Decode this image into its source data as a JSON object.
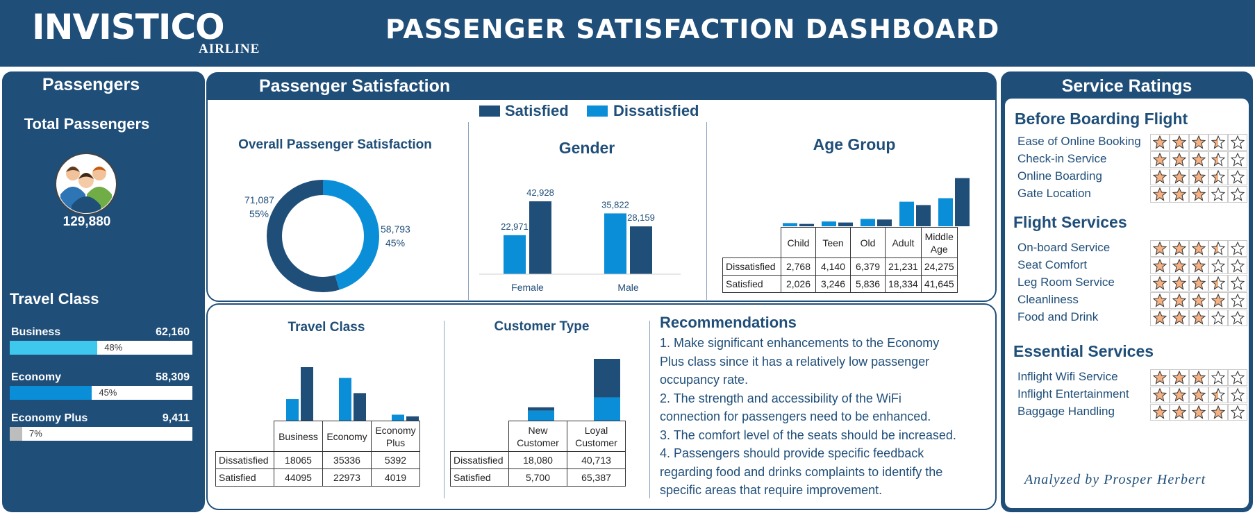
{
  "header": {
    "logo": "INVISTICO",
    "logo_sub": "AIRLINE",
    "title": "PASSENGER SATISFACTION DASHBOARD"
  },
  "colors": {
    "navy": "#1f4e79",
    "satisfied": "#1f4e79",
    "dissatisfied": "#0a8ed8",
    "cyan": "#3fc8ee",
    "gray": "#bdbdbd",
    "star": "#f4b183"
  },
  "passengers": {
    "title": "Passengers",
    "total_label": "Total Passengers",
    "total_value": "129,880",
    "avatar_icon": "people-group-icon",
    "travel_class_title": "Travel Class",
    "classes": [
      {
        "name": "Business",
        "value": "62,160",
        "pct": "48%",
        "fraction": 0.48,
        "color": "#3fc8ee"
      },
      {
        "name": "Economy",
        "value": "58,309",
        "pct": "45%",
        "fraction": 0.45,
        "color": "#0a8ed8"
      },
      {
        "name": "Economy Plus",
        "value": "9,411",
        "pct": "7%",
        "fraction": 0.07,
        "color": "#bdbdbd"
      }
    ]
  },
  "satisfaction": {
    "title": "Passenger Satisfaction",
    "legend": [
      "Satisfied",
      "Dissatisfied"
    ],
    "recommendations_title": "Recommendations",
    "recommendations": [
      "1. Make significant enhancements to the Economy",
      "Plus class since it has a relatively low passenger",
      "occupancy rate.",
      "2. The strength and accessibility of the WiFi",
      "connection for passengers need to be enhanced.",
      "3. The comfort level of the seats should be increased.",
      "4. Passengers should provide specific feedback",
      "regarding food and drinks complaints to identify the",
      "specific areas that require improvement."
    ]
  },
  "chart_data": [
    {
      "type": "pie",
      "title": "Overall Passenger Satisfaction",
      "labels": [
        "Satisfied",
        "Dissatisfied"
      ],
      "values": [
        71087,
        58793
      ],
      "value_labels": [
        "71,087",
        "58,793"
      ],
      "percent_labels": [
        "55%",
        "45%"
      ]
    },
    {
      "type": "bar",
      "title": "Gender",
      "categories": [
        "Female",
        "Male"
      ],
      "series": [
        {
          "name": "Dissatisfied",
          "values": [
            22971,
            35822
          ],
          "labels": [
            "22,971",
            "35,822"
          ]
        },
        {
          "name": "Satisfied",
          "values": [
            42928,
            28159
          ],
          "labels": [
            "42,928",
            "28,159"
          ]
        }
      ]
    },
    {
      "type": "bar",
      "title": "Age Group",
      "categories": [
        "Child",
        "Teen",
        "Old",
        "Adult",
        "Middle Age"
      ],
      "series": [
        {
          "name": "Dissatisfied",
          "values": [
            2768,
            4140,
            6379,
            21231,
            24275
          ],
          "labels": [
            "2,768",
            "4,140",
            "6,379",
            "21,231",
            "24,275"
          ]
        },
        {
          "name": "Satisfied",
          "values": [
            2026,
            3246,
            5836,
            18334,
            41645
          ],
          "labels": [
            "2,026",
            "3,246",
            "5,836",
            "18,334",
            "41,645"
          ]
        }
      ]
    },
    {
      "type": "bar",
      "title": "Travel Class",
      "categories": [
        "Business",
        "Economy",
        "Economy Plus"
      ],
      "series": [
        {
          "name": "Dissatisfied",
          "values": [
            18065,
            35336,
            5392
          ],
          "labels": [
            "18065",
            "35336",
            "5392"
          ]
        },
        {
          "name": "Satisfied",
          "values": [
            44095,
            22973,
            4019
          ],
          "labels": [
            "44095",
            "22973",
            "4019"
          ]
        }
      ]
    },
    {
      "type": "bar",
      "stacked": true,
      "title": "Customer Type",
      "categories": [
        "New Customer",
        "Loyal Customer"
      ],
      "series": [
        {
          "name": "Dissatisfied",
          "values": [
            18080,
            40713
          ],
          "labels": [
            "18,080",
            "40,713"
          ]
        },
        {
          "name": "Satisfied",
          "values": [
            5700,
            65387
          ],
          "labels": [
            "5,700",
            "65,387"
          ]
        }
      ]
    }
  ],
  "service_ratings": {
    "title": "Service Ratings",
    "analyzed_by": "Analyzed by Prosper Herbert",
    "sections": [
      {
        "title": "Before Boarding Flight",
        "items": [
          {
            "label": "Ease of Online Booking",
            "rating": 3.5
          },
          {
            "label": "Check-in Service",
            "rating": 3.5
          },
          {
            "label": "Online Boarding",
            "rating": 3.5
          },
          {
            "label": "Gate Location",
            "rating": 3
          }
        ]
      },
      {
        "title": "Flight Services",
        "items": [
          {
            "label": "On-board Service",
            "rating": 3.5
          },
          {
            "label": "Seat Comfort",
            "rating": 3
          },
          {
            "label": "Leg Room Service",
            "rating": 3.5
          },
          {
            "label": "Cleanliness",
            "rating": 4
          },
          {
            "label": "Food and Drink",
            "rating": 3
          }
        ]
      },
      {
        "title": "Essential Services",
        "items": [
          {
            "label": "Inflight Wifi Service",
            "rating": 3
          },
          {
            "label": "Inflight Entertainment",
            "rating": 3.5
          },
          {
            "label": "Baggage Handling",
            "rating": 4
          }
        ]
      }
    ]
  }
}
